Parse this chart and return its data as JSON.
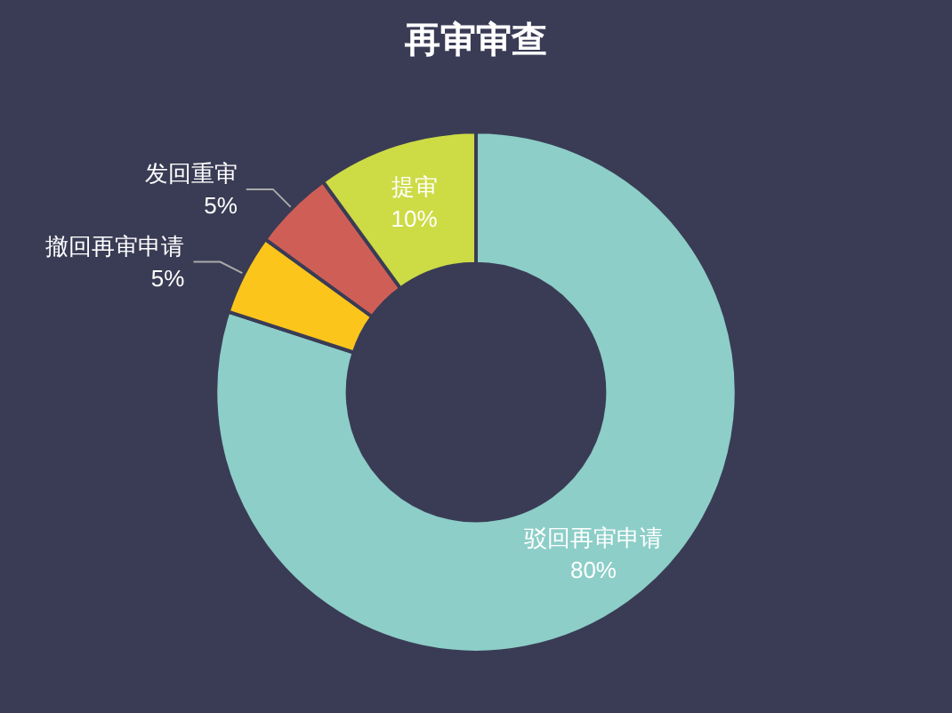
{
  "chart_data": {
    "type": "donut",
    "title": "再审审查",
    "categories": [
      "驳回再审申请",
      "撤回再审申请",
      "发回重审",
      "提审"
    ],
    "values": [
      80,
      5,
      5,
      10
    ],
    "value_labels": [
      "80%",
      "5%",
      "5%",
      "10%"
    ],
    "colors": [
      "#8dcec8",
      "#fcc51c",
      "#cf5f56",
      "#cddb45"
    ],
    "legend": false
  }
}
